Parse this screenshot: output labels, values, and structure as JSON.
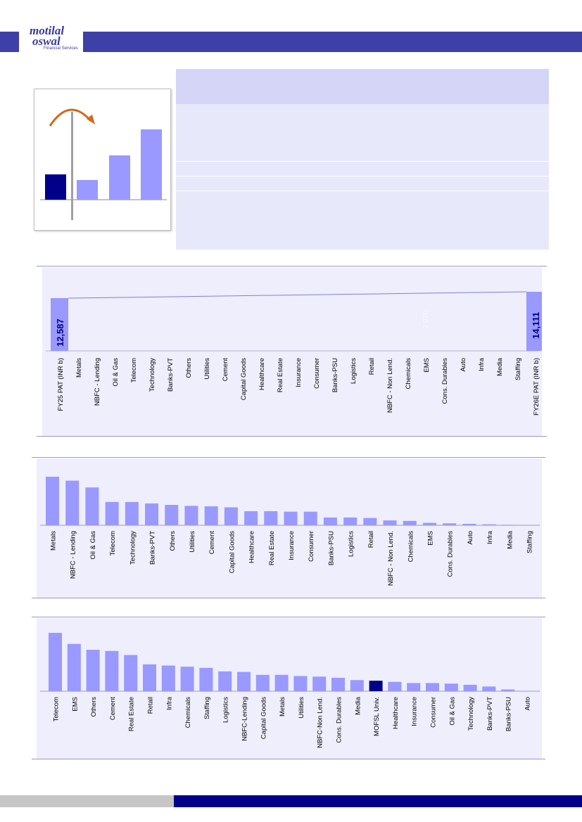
{
  "logo": {
    "brand_line1": "motilal",
    "brand_line2": "oswal",
    "sub": "Financial Services"
  },
  "colors": {
    "header": "#3f3fa8",
    "bar": "#9999ff",
    "highlight": "#00008b",
    "panel": "#eeeefc",
    "footer_blue": "#00008b",
    "footer_grey": "#c6c6c6",
    "arrow": "#d2691e"
  },
  "illustration": {
    "type": "bar",
    "values": [
      36,
      28,
      63,
      100
    ],
    "highlight_index": 0
  },
  "chart_data": [
    {
      "type": "waterfall",
      "categories": [
        "FY25 PAT (INR b)",
        "Metals",
        "NBFC - Lending",
        "Oil & Gas",
        "Telecom",
        "Technology",
        "Banks-PVT",
        "Others",
        "Utilities",
        "Cement",
        "Capital Goods",
        "Healthcare",
        "Real Estate",
        "Insurance",
        "Consumer",
        "Banks-PSU",
        "Logistics",
        "Retail",
        "NBFC - Non Lend.",
        "Chemicals",
        "EMS",
        "Cons. Durables",
        "Auto",
        "Infra",
        "Media",
        "Staffing",
        "FY26E PAT (INR b)"
      ],
      "start_value": 12587,
      "end_value": 14111,
      "start_label": "12,587",
      "end_label": "14,111",
      "faint_label": "2,076"
    },
    {
      "type": "bar",
      "categories": [
        "Metals",
        "NBFC - Lending",
        "Oil & Gas",
        "Telecom",
        "Technology",
        "Banks-PVT",
        "Others",
        "Utilities",
        "Cement",
        "Capital Goods",
        "Healthcare",
        "Real Estate",
        "Insurance",
        "Consumer",
        "Banks-PSU",
        "Logistics",
        "Retail",
        "NBFC - Non Lend.",
        "Chemicals",
        "EMS",
        "Cons. Durables",
        "Auto",
        "Infra",
        "Media",
        "Staffing"
      ],
      "values": [
        100,
        92,
        78,
        48,
        48,
        45,
        42,
        40,
        39,
        37,
        29,
        29,
        28,
        28,
        16,
        16,
        15,
        10,
        9,
        5,
        4,
        3,
        2,
        1,
        0.5
      ]
    },
    {
      "type": "bar",
      "categories": [
        "Telecom",
        "EMS",
        "Others",
        "Cement",
        "Real Estate",
        "Retail",
        "Infra",
        "Chemicals",
        "Staffing",
        "Logistics",
        "NBFC-Lending",
        "Capital Goods",
        "Metals",
        "Utilities",
        "NBFC-Non Lend.",
        "Cons. Durables",
        "Media",
        "MOFSL Univ.",
        "Healthcare",
        "Insurance",
        "Consumer",
        "Oil & Gas",
        "Technology",
        "Banks-PVT",
        "Banks-PSU",
        "Auto"
      ],
      "values": [
        100,
        81,
        71,
        69,
        62,
        46,
        44,
        42,
        40,
        34,
        33,
        28,
        28,
        26,
        25,
        23,
        19,
        18,
        16,
        14,
        14,
        13,
        11,
        8,
        3,
        0.5
      ],
      "highlight": "MOFSL Univ."
    }
  ]
}
